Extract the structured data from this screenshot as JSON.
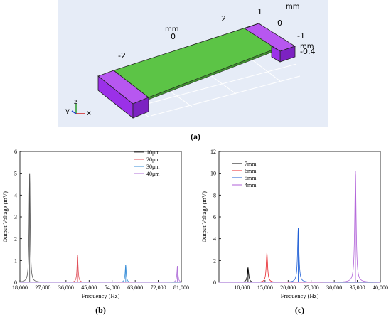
{
  "panel_a": {
    "label": "(a)",
    "top_labels": [
      "-2",
      "0",
      "2",
      "1"
    ],
    "mm_top": "mm",
    "mm_right": "mm",
    "mm_side": "mm",
    "side_labels": [
      "0",
      "-1",
      "-0.4"
    ],
    "axes": {
      "x": "x",
      "y": "y",
      "z": "z"
    },
    "colors": {
      "beam": "#5cc446",
      "electrode": "#9b30e8",
      "background": "#e6ecf7"
    }
  },
  "chart_data": [
    {
      "type": "line",
      "panel_label": "(b)",
      "xlabel": "Frequency (Hz)",
      "ylabel": "Output Voltage (mV)",
      "xlim": [
        18000,
        81000
      ],
      "ylim": [
        0,
        6
      ],
      "xticks": [
        "18,000",
        "27,000",
        "36,000",
        "45,000",
        "54,000",
        "63,000",
        "72,000",
        "81,000"
      ],
      "yticks": [
        "0",
        "1",
        "2",
        "3",
        "4",
        "5",
        "6"
      ],
      "legend_position": "top-right",
      "series": [
        {
          "name": "10μm",
          "color": "#555555",
          "peak_x": 21800,
          "peak_y": 5.0,
          "width": 250
        },
        {
          "name": "20μm",
          "color": "#e0505a",
          "peak_x": 40500,
          "peak_y": 1.25,
          "width": 250
        },
        {
          "name": "30μm",
          "color": "#3a8fd8",
          "peak_x": 59300,
          "peak_y": 0.8,
          "width": 250
        },
        {
          "name": "40μm",
          "color": "#b070d8",
          "peak_x": 79500,
          "peak_y": 0.75,
          "width": 250
        }
      ]
    },
    {
      "type": "line",
      "panel_label": "(c)",
      "xlabel": "Frequency (Hz)",
      "ylabel": "Output Voltage (mV)",
      "xlim": [
        5000,
        40000
      ],
      "ylim": [
        0,
        12
      ],
      "xticks": [
        "10,000",
        "15,000",
        "20,000",
        "25,000",
        "30,000",
        "35,000",
        "40,000"
      ],
      "yticks": [
        "0",
        "2",
        "4",
        "6",
        "8",
        "10",
        "12"
      ],
      "legend_position": "top-left",
      "series": [
        {
          "name": "7mm",
          "color": "#000000",
          "peak_x": 11300,
          "peak_y": 1.35,
          "width": 180
        },
        {
          "name": "6mm",
          "color": "#e8252b",
          "peak_x": 15400,
          "peak_y": 2.7,
          "width": 180
        },
        {
          "name": "5mm",
          "color": "#1f5fd6",
          "peak_x": 22200,
          "peak_y": 5.0,
          "width": 180
        },
        {
          "name": "4mm",
          "color": "#b060d8",
          "peak_x": 34600,
          "peak_y": 10.2,
          "width": 180
        }
      ]
    }
  ]
}
